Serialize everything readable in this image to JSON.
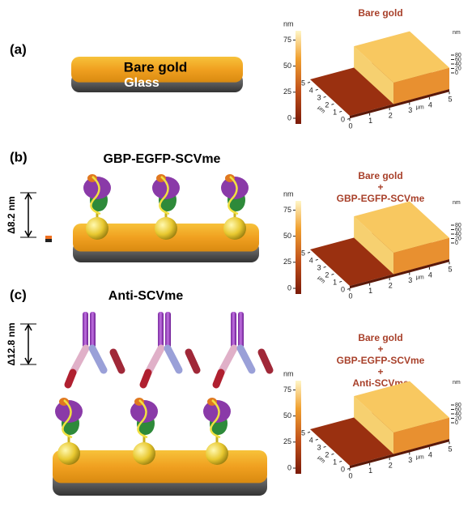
{
  "panels": [
    {
      "label": "(a)",
      "diagram": {
        "top_label": "Bare gold",
        "bottom_label": "Glass"
      },
      "afm": {
        "title_lines": [
          "Bare gold"
        ]
      }
    },
    {
      "label": "(b)",
      "diagram": {
        "title": "GBP-EGFP-SCVme",
        "height_label": "Δ8.2 nm"
      },
      "afm": {
        "title_lines": [
          "Bare gold",
          "+",
          "GBP-EGFP-SCVme"
        ]
      }
    },
    {
      "label": "(c)",
      "diagram": {
        "title": "Anti-SCVme",
        "height_label": "Δ12.8 nm"
      },
      "afm": {
        "title_lines": [
          "Bare gold",
          "+",
          "GBP-EGFP-SCVme",
          "+",
          "Anti-SCVme"
        ]
      }
    }
  ],
  "afm_axes": {
    "colorbar_unit": "nm",
    "colorbar_ticks": [
      75,
      50,
      25,
      0
    ],
    "xy_unit": "μm",
    "x_ticks": [
      0,
      1,
      2,
      3,
      4,
      5
    ],
    "y_ticks": [
      0,
      1,
      2,
      3,
      4,
      5
    ],
    "z_unit": "nm",
    "z_ticks": [
      80,
      60,
      40,
      20,
      0
    ]
  }
}
